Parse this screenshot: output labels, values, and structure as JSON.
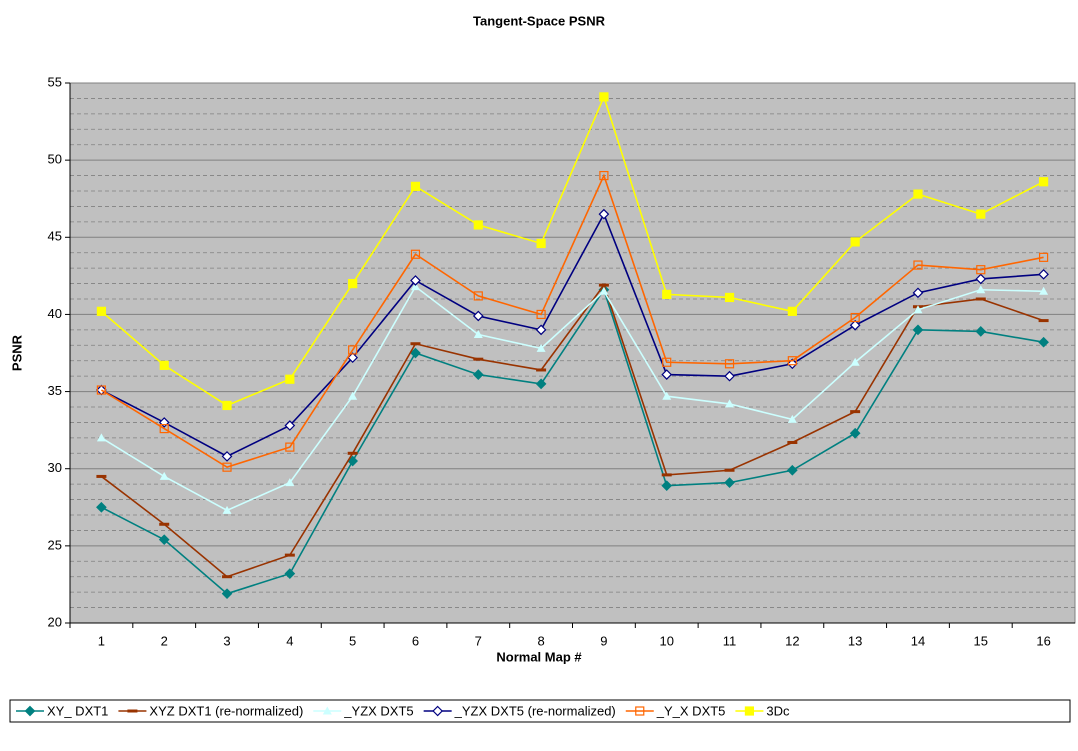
{
  "chart_data": {
    "type": "line",
    "title": "Tangent-Space PSNR",
    "xlabel": "Normal Map #",
    "ylabel": "PSNR",
    "categories": [
      "1",
      "2",
      "3",
      "4",
      "5",
      "6",
      "7",
      "8",
      "9",
      "10",
      "11",
      "12",
      "13",
      "14",
      "15",
      "16"
    ],
    "ylim": [
      20,
      55
    ],
    "yticks": [
      20,
      25,
      30,
      35,
      40,
      45,
      50,
      55
    ],
    "yminorticks": [
      21,
      22,
      23,
      24,
      26,
      27,
      28,
      29,
      31,
      32,
      33,
      34,
      36,
      37,
      38,
      39,
      41,
      42,
      43,
      44,
      46,
      47,
      48,
      49,
      51,
      52,
      53,
      54
    ],
    "grid": true,
    "legend": "bottom",
    "series": [
      {
        "name": "XY_ DXT1",
        "color": "#008080",
        "marker": "diamond",
        "values": [
          27.5,
          25.4,
          21.9,
          23.2,
          30.5,
          37.5,
          36.1,
          35.5,
          41.6,
          28.9,
          29.1,
          29.9,
          32.3,
          39.0,
          38.9,
          38.2
        ]
      },
      {
        "name": "XYZ DXT1 (re-normalized)",
        "color": "#993300",
        "marker": "dash",
        "values": [
          29.5,
          26.4,
          23.0,
          24.4,
          31.0,
          38.1,
          37.1,
          36.4,
          41.9,
          29.6,
          29.9,
          31.7,
          33.7,
          40.5,
          41.0,
          39.6
        ]
      },
      {
        "name": "_YZX DXT5",
        "color": "#ccffff",
        "marker": "triangle",
        "values": [
          32.0,
          29.5,
          27.3,
          29.1,
          34.7,
          41.8,
          38.7,
          37.8,
          41.5,
          34.7,
          34.2,
          33.2,
          36.9,
          40.3,
          41.6,
          41.5
        ]
      },
      {
        "name": "_YZX DXT5 (re-normalized)",
        "color": "#000080",
        "marker": "diamond-open",
        "values": [
          35.1,
          33.0,
          30.8,
          32.8,
          37.2,
          42.2,
          39.9,
          39.0,
          46.5,
          36.1,
          36.0,
          36.8,
          39.3,
          41.4,
          42.3,
          42.6
        ]
      },
      {
        "name": "_Y_X DXT5",
        "color": "#ff6600",
        "marker": "square-open",
        "values": [
          35.1,
          32.6,
          30.1,
          31.4,
          37.7,
          43.9,
          41.2,
          40.0,
          49.0,
          36.9,
          36.8,
          37.0,
          39.8,
          43.2,
          42.9,
          43.7
        ]
      },
      {
        "name": "3Dc",
        "color": "#ffff00",
        "marker": "square",
        "values": [
          40.2,
          36.7,
          34.1,
          35.8,
          42.0,
          48.3,
          45.8,
          44.6,
          54.1,
          41.3,
          41.1,
          40.2,
          44.7,
          47.8,
          46.5,
          48.6
        ]
      }
    ]
  }
}
